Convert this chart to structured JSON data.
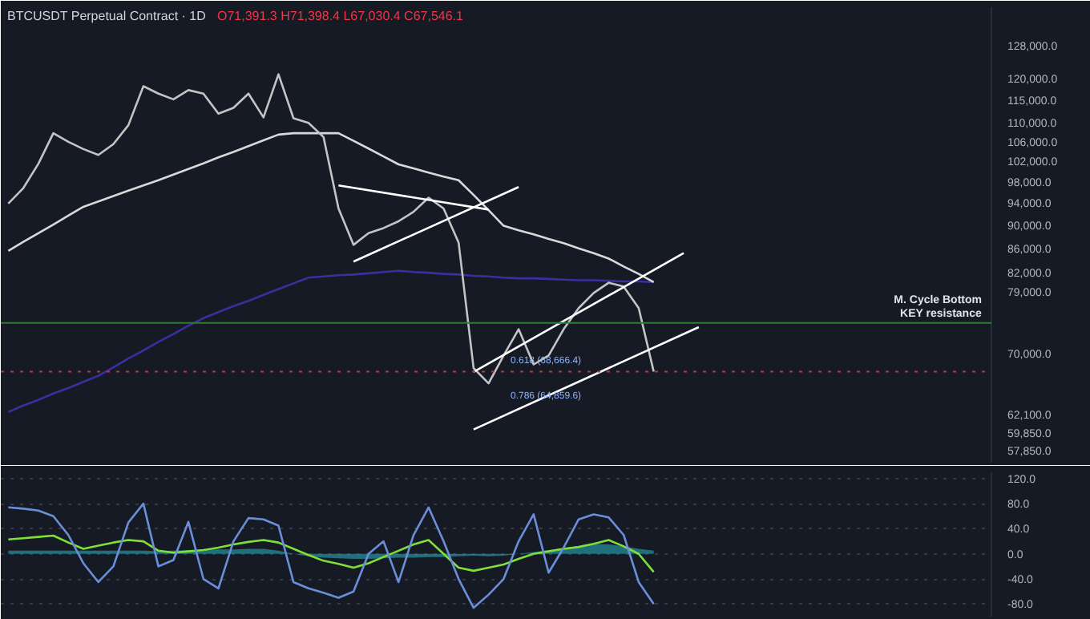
{
  "chart_data": [
    {
      "type": "line",
      "title": "BTCUSDT Perpetual Contract · 1D",
      "log": "y",
      "tick_labels": "y",
      "grid": false,
      "line_style": "solid",
      "marker": "none",
      "categories": [
        null,
        null,
        null,
        null,
        null,
        null,
        null,
        null,
        null,
        null,
        null,
        null,
        null,
        null,
        null,
        null,
        null,
        null,
        null,
        null,
        null,
        null,
        null,
        null,
        null,
        null,
        null,
        null,
        null,
        null,
        null,
        null,
        null,
        null,
        null,
        null,
        null,
        null,
        null,
        null,
        null,
        null,
        null,
        null,
        null,
        null,
        null,
        null,
        null,
        null,
        null,
        null,
        null,
        null,
        null,
        null,
        null,
        null,
        null,
        null,
        null,
        null,
        null,
        null,
        null,
        null
      ],
      "ylim": [
        56500,
        138000
      ],
      "yticks": [
        {
          "value": 128000,
          "label": "128,000.0"
        },
        {
          "value": 120000,
          "label": "120,000.0"
        },
        {
          "value": 115000,
          "label": "115,000.0"
        },
        {
          "value": 110000,
          "label": "110,000.0"
        },
        {
          "value": 106000,
          "label": "106,000.0"
        },
        {
          "value": 102000,
          "label": "102,000.0"
        },
        {
          "value": 98000,
          "label": "98,000.0"
        },
        {
          "value": 94000,
          "label": "94,000.0"
        },
        {
          "value": 90000,
          "label": "90,000.0"
        },
        {
          "value": 86000,
          "label": "86,000.0"
        },
        {
          "value": 82000,
          "label": "82,000.0"
        },
        {
          "value": 79000,
          "label": "79,000.0"
        },
        {
          "value": 70000,
          "label": "70,000.0"
        },
        {
          "value": 62100,
          "label": "62,100.0"
        },
        {
          "value": 59850,
          "label": "59,850.0"
        },
        {
          "value": 57850,
          "label": "57,850.0"
        }
      ],
      "series": [
        {
          "color": "#3b2fa0",
          "values": [
            62400,
            63200,
            63900,
            64700,
            65400,
            66200,
            67000,
            68100,
            69300,
            70400,
            71600,
            72700,
            73900,
            75000,
            75900,
            76800,
            77600,
            78500,
            79400,
            80300,
            81200,
            81400,
            81600,
            81700,
            81900,
            82100,
            82300,
            82100,
            82000,
            81800,
            81700,
            81500,
            81400,
            81200,
            81100,
            81100,
            81000,
            80900,
            80800,
            80800,
            80700,
            80600,
            80600,
            80500,
            null,
            null,
            null,
            null,
            null,
            null,
            null,
            null,
            null,
            null,
            null,
            null,
            null,
            null,
            null,
            null,
            null,
            null,
            null,
            null,
            null,
            null
          ]
        },
        {
          "color": "#d9d9d9",
          "values": [
            85600,
            87100,
            88600,
            90100,
            91700,
            93300,
            94300,
            95300,
            96300,
            97300,
            98300,
            99400,
            100500,
            101600,
            102800,
            103900,
            105100,
            106300,
            107500,
            107800,
            107800,
            107800,
            107800,
            106200,
            104600,
            103000,
            101400,
            100600,
            99800,
            99000,
            98300,
            95500,
            92700,
            89900,
            89100,
            88400,
            87600,
            86900,
            86000,
            85200,
            84300,
            83000,
            81800,
            80500,
            null,
            null,
            null,
            null,
            null,
            null,
            null,
            null,
            null,
            null,
            null,
            null,
            null,
            null,
            null,
            null,
            null,
            null,
            null,
            null,
            null,
            null
          ]
        },
        {
          "color": "#c4c4c4",
          "values": [
            93900,
            96800,
            101500,
            107800,
            106000,
            104500,
            103300,
            105500,
            109500,
            118200,
            116500,
            115200,
            117300,
            116500,
            112000,
            113300,
            116500,
            111200,
            121000,
            111000,
            110000,
            107000,
            93000,
            86600,
            88600,
            89500,
            90700,
            92400,
            95000,
            93000,
            87000,
            68000,
            66000,
            69700,
            73400,
            68500,
            69700,
            73400,
            76500,
            78800,
            80400,
            79800,
            76500,
            67546.1,
            null,
            null,
            null,
            null,
            null,
            null,
            null,
            null,
            null,
            null,
            null,
            null,
            null,
            null,
            null,
            null,
            null,
            null,
            null,
            null,
            null,
            null
          ]
        },
        {
          "color": "#ffffff",
          "values": [
            null,
            null,
            null,
            null,
            null,
            null,
            null,
            null,
            null,
            null,
            null,
            null,
            null,
            null,
            null,
            null,
            null,
            null,
            null,
            null,
            null,
            null,
            97300,
            null,
            null,
            null,
            null,
            null,
            null,
            null,
            null,
            null,
            92800,
            null,
            null,
            null,
            null,
            null,
            null,
            null,
            null,
            null,
            null,
            null,
            null,
            null,
            null,
            null,
            null,
            null,
            null,
            null,
            null,
            null,
            null,
            null,
            null,
            null,
            null,
            null,
            null,
            null,
            null,
            null,
            null,
            null
          ]
        },
        {
          "color": "#ffffff",
          "values": [
            null,
            null,
            null,
            null,
            null,
            null,
            null,
            null,
            null,
            null,
            null,
            null,
            null,
            null,
            null,
            null,
            null,
            null,
            null,
            null,
            null,
            null,
            null,
            83800,
            null,
            null,
            null,
            null,
            null,
            null,
            null,
            null,
            null,
            null,
            97000,
            null,
            null,
            null,
            null,
            null,
            null,
            null,
            null,
            null,
            null,
            null,
            null,
            null,
            null,
            null,
            null,
            null,
            null,
            null,
            null,
            null,
            null,
            null,
            null,
            null,
            null,
            null,
            null,
            null,
            null,
            null
          ]
        },
        {
          "color": "#ffffff",
          "values": [
            null,
            null,
            null,
            null,
            null,
            null,
            null,
            null,
            null,
            null,
            null,
            null,
            null,
            null,
            null,
            null,
            null,
            null,
            null,
            null,
            null,
            null,
            null,
            null,
            null,
            null,
            null,
            null,
            null,
            null,
            null,
            67500,
            null,
            null,
            null,
            null,
            null,
            null,
            null,
            null,
            null,
            null,
            null,
            null,
            null,
            85200,
            null,
            null,
            null,
            null,
            null,
            null,
            null,
            null,
            null,
            null,
            null,
            null,
            null,
            null,
            null,
            null,
            null,
            null,
            null,
            null
          ]
        },
        {
          "color": "#ffffff",
          "values": [
            null,
            null,
            null,
            null,
            null,
            null,
            null,
            null,
            null,
            null,
            null,
            null,
            null,
            null,
            null,
            null,
            null,
            null,
            null,
            null,
            null,
            null,
            null,
            null,
            null,
            null,
            null,
            null,
            null,
            null,
            null,
            60300,
            null,
            null,
            null,
            null,
            null,
            null,
            null,
            null,
            null,
            null,
            null,
            null,
            null,
            null,
            73700,
            null,
            null,
            null,
            null,
            null,
            null,
            null,
            null,
            null,
            null,
            null,
            null,
            null,
            null,
            null,
            null,
            null,
            null,
            null
          ]
        }
      ],
      "ref_lines": [
        {
          "axis": "y",
          "value": 74300,
          "label": "M. Cycle Bottom\nKEY resistance",
          "color": "#2e7d32",
          "line_style": "solid"
        },
        {
          "axis": "y",
          "value": 67546.1,
          "label": null,
          "color": "#b23b3b",
          "line_style": "dotted"
        }
      ],
      "annotations": [
        "O71,391.3 H71,398.4 L67,030.4 C67,546.1",
        "0.618 (68,666.4)",
        "0.786 (64,859.6)"
      ]
    },
    {
      "type": "line",
      "tick_labels": "y",
      "grid": "y",
      "marker": "none",
      "line_style": "solid",
      "categories": [
        null,
        null,
        null,
        null,
        null,
        null,
        null,
        null,
        null,
        null,
        null,
        null,
        null,
        null,
        null,
        null,
        null,
        null,
        null,
        null,
        null,
        null,
        null,
        null,
        null,
        null,
        null,
        null,
        null,
        null,
        null,
        null,
        null,
        null,
        null,
        null,
        null,
        null,
        null,
        null,
        null,
        null,
        null,
        null,
        null,
        null,
        null,
        null,
        null,
        null,
        null,
        null,
        null,
        null,
        null,
        null,
        null,
        null,
        null,
        null,
        null,
        null,
        null,
        null,
        null,
        null
      ],
      "ylim": [
        -100,
        130
      ],
      "yticks": [
        {
          "value": 120,
          "label": "120.0"
        },
        {
          "value": 80,
          "label": "80.0"
        },
        {
          "value": 40,
          "label": "40.0"
        },
        {
          "value": 0,
          "label": "0.0"
        },
        {
          "value": -40,
          "label": "-40.0"
        },
        {
          "value": -80,
          "label": "-80.0"
        }
      ],
      "series": [
        {
          "type": "area",
          "color": "#2aa6b8",
          "values": [
            5,
            5,
            5,
            5,
            5,
            5,
            5,
            5,
            5,
            5,
            4,
            5,
            6,
            6,
            7,
            7,
            8,
            8,
            5,
            0,
            -4,
            -6,
            -7,
            -8,
            -8,
            -7,
            -6,
            -6,
            -5,
            -5,
            -4,
            -3,
            -4,
            -3,
            0,
            3,
            6,
            9,
            12,
            16,
            15,
            12,
            8,
            5,
            null,
            null,
            null,
            null,
            null,
            null,
            null,
            null,
            null,
            null,
            null,
            null,
            null,
            null,
            null,
            null,
            null,
            null,
            null,
            null,
            null,
            null
          ]
        },
        {
          "color": "#7fe03a",
          "values": [
            23,
            25,
            27,
            29,
            18,
            8,
            13,
            18,
            22,
            20,
            5,
            2,
            4,
            6,
            10,
            15,
            19,
            22,
            18,
            8,
            -2,
            -11,
            -16,
            -22,
            -15,
            -5,
            5,
            15,
            22,
            0,
            -22,
            -27,
            -22,
            -17,
            -8,
            0,
            4,
            8,
            11,
            16,
            22,
            12,
            0,
            -29,
            null,
            null,
            null,
            null,
            null,
            null,
            null,
            null,
            null,
            null,
            null,
            null,
            null,
            null,
            null,
            null,
            null,
            null,
            null,
            null,
            null,
            null
          ]
        },
        {
          "color": "#6a8fd8",
          "values": [
            74,
            72,
            69,
            60,
            30,
            -15,
            -45,
            -20,
            50,
            80,
            -20,
            -10,
            51,
            -40,
            -55,
            20,
            57,
            55,
            45,
            -45,
            -55,
            -62,
            -70,
            -60,
            0,
            20,
            -45,
            30,
            74,
            20,
            -40,
            -86,
            -65,
            -40,
            20,
            63,
            -30,
            10,
            55,
            63,
            58,
            30,
            -45,
            -80,
            null,
            null,
            null,
            null,
            null,
            null,
            null,
            null,
            null,
            null,
            null,
            null,
            null,
            null,
            null,
            null,
            null,
            null,
            null,
            null,
            null,
            null
          ]
        }
      ]
    }
  ]
}
